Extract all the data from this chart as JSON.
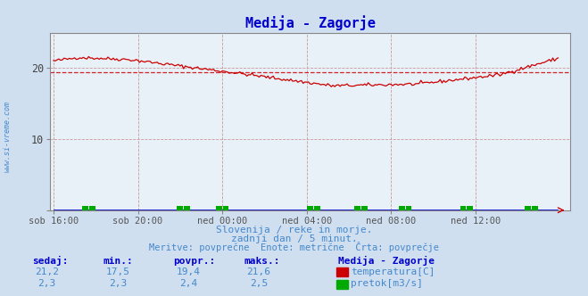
{
  "title": "Medija - Zagorje",
  "title_color": "#0000cc",
  "bg_color": "#d0dff0",
  "plot_bg_color": "#e8f0f8",
  "border_color": "#888888",
  "xlim": [
    0,
    288
  ],
  "ylim": [
    0,
    25
  ],
  "yticks": [
    0,
    10,
    20
  ],
  "xtick_labels": [
    "sob 16:00",
    "sob 20:00",
    "ned 00:00",
    "ned 04:00",
    "ned 08:00",
    "ned 12:00"
  ],
  "xtick_positions": [
    0,
    48,
    96,
    144,
    192,
    240
  ],
  "temp_avg": 19.4,
  "temp_color": "#cc0000",
  "flow_color": "#00aa00",
  "flow_line_color": "#0000cc",
  "watermark": "www.si-vreme.com",
  "subtitle1": "Slovenija / reke in morje.",
  "subtitle2": "zadnji dan / 5 minut.",
  "subtitle3": "Meritve: povprečne  Enote: metrične  Črta: povprečje",
  "subtitle_color": "#4488cc",
  "footer_color": "#0000cc",
  "legend_title": "Medija - Zagorje",
  "sedaj_label": "sedaj:",
  "min_label": "min.:",
  "povpr_label": "povpr.:",
  "maks_label": "maks.:",
  "temp_sedaj": "21,2",
  "temp_min": "17,5",
  "temp_povpr": "19,4",
  "temp_maks": "21,6",
  "flow_sedaj": "2,3",
  "flow_min": "2,3",
  "flow_povpr": "2,4",
  "flow_maks": "2,5",
  "temp_label": "temperatura[C]",
  "flow_label": "pretok[m3/s]"
}
